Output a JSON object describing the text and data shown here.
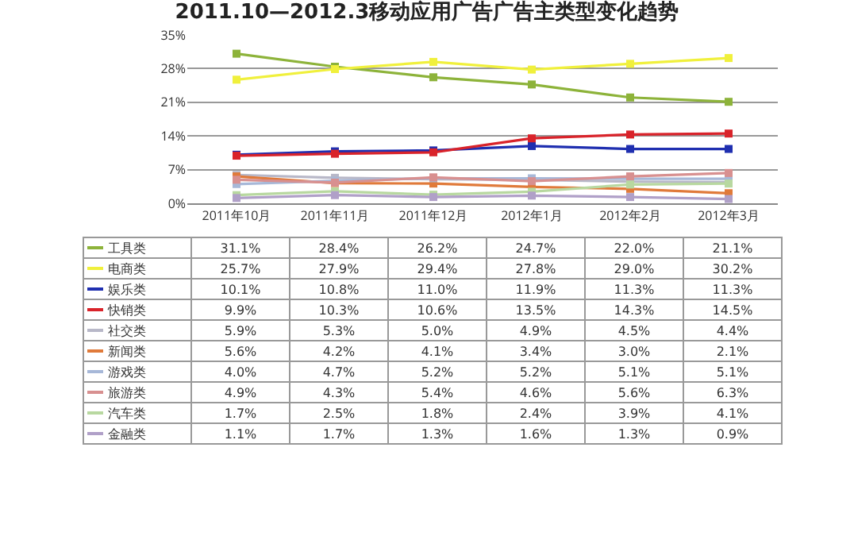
{
  "chart_data": {
    "type": "line",
    "title": "2011.10—2012.3移动应用广告广告主类型变化趋势",
    "categories": [
      "2011年10月",
      "2011年11月",
      "2011年12月",
      "2012年1月",
      "2012年2月",
      "2012年3月"
    ],
    "ylim": [
      0,
      35
    ],
    "yticks": [
      {
        "value": 0,
        "label": "0%"
      },
      {
        "value": 7,
        "label": "7%"
      },
      {
        "value": 14,
        "label": "14%"
      },
      {
        "value": 21,
        "label": "21%"
      },
      {
        "value": 28,
        "label": "28%"
      },
      {
        "value": 35,
        "label": "35%"
      }
    ],
    "grid": "y",
    "legend": "bottom",
    "marker": "square",
    "line_style": "solid",
    "series": [
      {
        "name": "工具类",
        "color": "#8db33a",
        "values": [
          31.1,
          28.4,
          26.2,
          24.7,
          22.0,
          21.1
        ],
        "value_labels": [
          "31.1%",
          "28.4%",
          "26.2%",
          "24.7%",
          "22.0%",
          "21.1%"
        ]
      },
      {
        "name": "电商类",
        "color": "#f0f03c",
        "values": [
          25.7,
          27.9,
          29.4,
          27.8,
          29.0,
          30.2
        ],
        "value_labels": [
          "25.7%",
          "27.9%",
          "29.4%",
          "27.8%",
          "29.0%",
          "30.2%"
        ]
      },
      {
        "name": "娱乐类",
        "color": "#1f2fb0",
        "values": [
          10.1,
          10.8,
          11.0,
          11.9,
          11.3,
          11.3
        ],
        "value_labels": [
          "10.1%",
          "10.8%",
          "11.0%",
          "11.9%",
          "11.3%",
          "11.3%"
        ]
      },
      {
        "name": "快销类",
        "color": "#d9232a",
        "values": [
          9.9,
          10.3,
          10.6,
          13.5,
          14.3,
          14.5
        ],
        "value_labels": [
          "9.9%",
          "10.3%",
          "10.6%",
          "13.5%",
          "14.3%",
          "14.5%"
        ]
      },
      {
        "name": "社交类",
        "color": "#b8b8c8",
        "values": [
          5.9,
          5.3,
          5.0,
          4.9,
          4.5,
          4.4
        ],
        "value_labels": [
          "5.9%",
          "5.3%",
          "5.0%",
          "4.9%",
          "4.5%",
          "4.4%"
        ]
      },
      {
        "name": "新闻类",
        "color": "#e07a3a",
        "values": [
          5.6,
          4.2,
          4.1,
          3.4,
          3.0,
          2.1
        ],
        "value_labels": [
          "5.6%",
          "4.2%",
          "4.1%",
          "3.4%",
          "3.0%",
          "2.1%"
        ]
      },
      {
        "name": "游戏类",
        "color": "#a7b8d8",
        "values": [
          4.0,
          4.7,
          5.2,
          5.2,
          5.1,
          5.1
        ],
        "value_labels": [
          "4.0%",
          "4.7%",
          "5.2%",
          "5.2%",
          "5.1%",
          "5.1%"
        ]
      },
      {
        "name": "旅游类",
        "color": "#d89090",
        "values": [
          4.9,
          4.3,
          5.4,
          4.6,
          5.6,
          6.3
        ],
        "value_labels": [
          "4.9%",
          "4.3%",
          "5.4%",
          "4.6%",
          "5.6%",
          "6.3%"
        ]
      },
      {
        "name": "汽车类",
        "color": "#b8d8a0",
        "values": [
          1.7,
          2.5,
          1.8,
          2.4,
          3.9,
          4.1
        ],
        "value_labels": [
          "1.7%",
          "2.5%",
          "1.8%",
          "2.4%",
          "3.9%",
          "4.1%"
        ]
      },
      {
        "name": "金融类",
        "color": "#b0a0c8",
        "values": [
          1.1,
          1.7,
          1.3,
          1.6,
          1.3,
          0.9
        ],
        "value_labels": [
          "1.1%",
          "1.7%",
          "1.3%",
          "1.6%",
          "1.3%",
          "0.9%"
        ]
      }
    ]
  }
}
